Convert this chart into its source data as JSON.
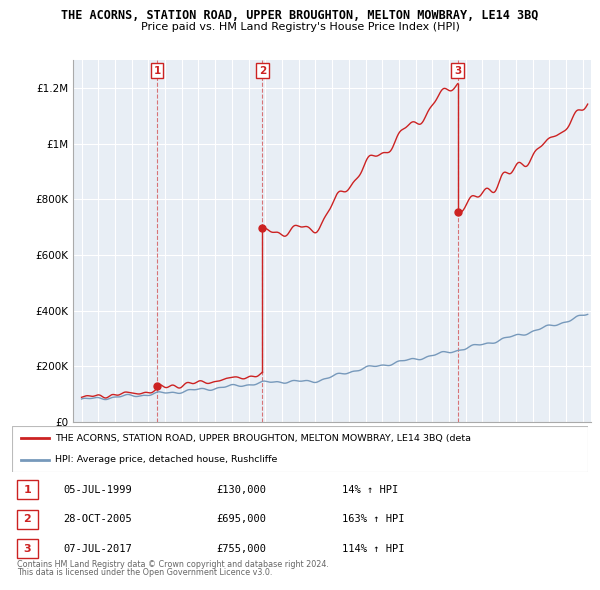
{
  "title": "THE ACORNS, STATION ROAD, UPPER BROUGHTON, MELTON MOWBRAY, LE14 3BQ",
  "subtitle": "Price paid vs. HM Land Registry's House Price Index (HPI)",
  "hpi_color": "#7799bb",
  "price_color": "#cc2222",
  "bg_color": "#e8eef5",
  "ylim": [
    0,
    1300000
  ],
  "yticks": [
    0,
    200000,
    400000,
    600000,
    800000,
    1000000,
    1200000
  ],
  "ytick_labels": [
    "£0",
    "£200K",
    "£400K",
    "£600K",
    "£800K",
    "£1M",
    "£1.2M"
  ],
  "xstart": 1994.5,
  "xend": 2025.5,
  "transactions": [
    {
      "date": 1999.52,
      "price": 130000,
      "label": "1"
    },
    {
      "date": 2005.83,
      "price": 695000,
      "label": "2"
    },
    {
      "date": 2017.51,
      "price": 755000,
      "label": "3"
    }
  ],
  "legend_entries": [
    "THE ACORNS, STATION ROAD, UPPER BROUGHTON, MELTON MOWBRAY, LE14 3BQ (deta",
    "HPI: Average price, detached house, Rushcliffe"
  ],
  "table_rows": [
    {
      "num": "1",
      "date": "05-JUL-1999",
      "price": "£130,000",
      "hpi": "14% ↑ HPI"
    },
    {
      "num": "2",
      "date": "28-OCT-2005",
      "price": "£695,000",
      "hpi": "163% ↑ HPI"
    },
    {
      "num": "3",
      "date": "07-JUL-2017",
      "price": "£755,000",
      "hpi": "114% ↑ HPI"
    }
  ],
  "footnote1": "Contains HM Land Registry data © Crown copyright and database right 2024.",
  "footnote2": "This data is licensed under the Open Government Licence v3.0."
}
